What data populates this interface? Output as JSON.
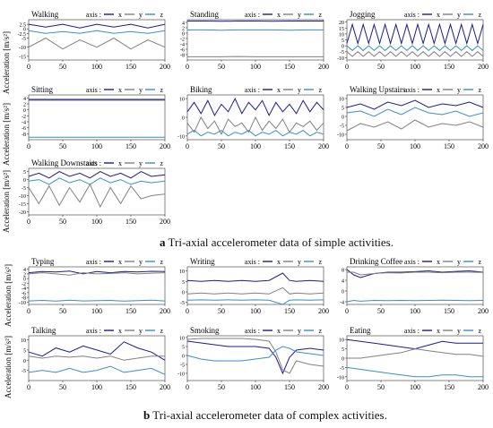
{
  "captions": {
    "simple": {
      "letter": "a",
      "text": "Tri-axial accelerometer data of simple activities."
    },
    "complex": {
      "letter": "b",
      "text": "Tri-axial accelerometer data of complex activities."
    }
  },
  "ylabel": "Acceleration [m/s²]",
  "legend": {
    "prefix": "axis :",
    "entries": [
      "x",
      "y",
      "z"
    ]
  },
  "colors": {
    "x": "#1c1c8c",
    "y": "#808080",
    "z": "#3a8fc4"
  },
  "chart_data": [
    {
      "type": "line",
      "title": "Walking",
      "xlim": [
        0,
        200
      ],
      "ylim": [
        -17,
        5
      ],
      "yticks": [
        -15,
        -10,
        -5,
        -2.5,
        0,
        2.5
      ],
      "xticks": [
        0,
        50,
        100,
        150,
        200
      ],
      "x": [
        0,
        25,
        50,
        75,
        100,
        125,
        150,
        175,
        200
      ],
      "series": [
        {
          "name": "x",
          "values": [
            2.5,
            1,
            2.5,
            0.5,
            2.5,
            1,
            2.5,
            0.5,
            2.5
          ]
        },
        {
          "name": "y",
          "values": [
            -10,
            -5,
            -11,
            -6,
            -10,
            -5,
            -11,
            -6,
            -10
          ]
        },
        {
          "name": "z",
          "values": [
            -1,
            -2.5,
            -1.5,
            -2.5,
            -1,
            -2.5,
            -1.5,
            -2.5,
            -1
          ]
        }
      ]
    },
    {
      "type": "line",
      "title": "Standing",
      "xlim": [
        0,
        200
      ],
      "ylim": [
        -10,
        5
      ],
      "yticks": [
        -8,
        -6,
        -4,
        -2,
        0,
        2,
        4
      ],
      "xticks": [
        0,
        50,
        100,
        150,
        200
      ],
      "x": [
        0,
        25,
        50,
        75,
        100,
        125,
        150,
        175,
        200
      ],
      "series": [
        {
          "name": "x",
          "values": [
            4.5,
            4.5,
            4.4,
            4.5,
            4.5,
            4.4,
            4.5,
            4.5,
            4.5
          ]
        },
        {
          "name": "y",
          "values": [
            -8.8,
            -8.8,
            -8.8,
            -8.7,
            -8.8,
            -8.8,
            -8.8,
            -8.8,
            -8.8
          ]
        },
        {
          "name": "z",
          "values": [
            1.2,
            1.2,
            1.1,
            1.2,
            1.2,
            1.2,
            1.1,
            1.2,
            1.2
          ]
        }
      ]
    },
    {
      "type": "line",
      "title": "Jogging",
      "xlim": [
        0,
        200
      ],
      "ylim": [
        -12,
        22
      ],
      "yticks": [
        -10,
        -5,
        0,
        5,
        10,
        15,
        20
      ],
      "xticks": [
        0,
        50,
        100,
        150,
        200
      ],
      "x": [
        0,
        8,
        16,
        24,
        32,
        40,
        48,
        56,
        64,
        72,
        80,
        88,
        96,
        104,
        112,
        120,
        128,
        136,
        144,
        152,
        160,
        168,
        176,
        184,
        192,
        200
      ],
      "series": [
        {
          "name": "x",
          "values": [
            2,
            18,
            2,
            18,
            2,
            18,
            2,
            18,
            2,
            18,
            2,
            18,
            2,
            18,
            2,
            18,
            2,
            18,
            2,
            18,
            2,
            18,
            2,
            18,
            2,
            18
          ]
        },
        {
          "name": "y",
          "values": [
            -5,
            -9,
            -5,
            -9,
            -5,
            -9,
            -5,
            -9,
            -5,
            -9,
            -5,
            -9,
            -5,
            -9,
            -5,
            -9,
            -5,
            -9,
            -5,
            -9,
            -5,
            -9,
            -5,
            -9,
            -5,
            -9
          ]
        },
        {
          "name": "z",
          "values": [
            0,
            -4,
            0,
            -4,
            0,
            -4,
            0,
            -4,
            0,
            -4,
            0,
            -4,
            0,
            -4,
            0,
            -4,
            0,
            -4,
            0,
            -4,
            0,
            -4,
            0,
            -4,
            0,
            -4
          ]
        }
      ]
    },
    {
      "type": "line",
      "title": "Sitting",
      "xlim": [
        0,
        200
      ],
      "ylim": [
        -10,
        5
      ],
      "yticks": [
        -8,
        -6,
        -4,
        -2,
        0,
        2,
        4
      ],
      "xticks": [
        0,
        50,
        100,
        150,
        200
      ],
      "x": [
        0,
        25,
        50,
        75,
        100,
        125,
        150,
        175,
        200
      ],
      "series": [
        {
          "name": "x",
          "values": [
            3.5,
            3.5,
            3.5,
            3.5,
            3.5,
            3.5,
            3.5,
            3.5,
            3.5
          ]
        },
        {
          "name": "y",
          "values": [
            3.2,
            3.2,
            3.2,
            3.2,
            3.2,
            3.2,
            3.2,
            3.2,
            3.2
          ]
        },
        {
          "name": "z",
          "values": [
            -9.2,
            -9.2,
            -9.2,
            -9.2,
            -9.2,
            -9.2,
            -9.2,
            -9.2,
            -9.2
          ]
        }
      ]
    },
    {
      "type": "line",
      "title": "Biking",
      "xlim": [
        0,
        200
      ],
      "ylim": [
        -12,
        12
      ],
      "yticks": [
        -10,
        0,
        10
      ],
      "xticks": [
        0,
        50,
        100,
        150,
        200
      ],
      "x": [
        0,
        10,
        20,
        30,
        40,
        50,
        60,
        70,
        80,
        90,
        100,
        110,
        120,
        130,
        140,
        150,
        160,
        170,
        180,
        190,
        200
      ],
      "series": [
        {
          "name": "x",
          "values": [
            3,
            8,
            2,
            9,
            1,
            7,
            3,
            10,
            2,
            8,
            4,
            9,
            1,
            8,
            3,
            7,
            2,
            9,
            3,
            8,
            4
          ]
        },
        {
          "name": "y",
          "values": [
            -3,
            -8,
            0,
            -6,
            -2,
            -9,
            -1,
            -5,
            -3,
            -8,
            0,
            -7,
            -2,
            -6,
            -1,
            -8,
            -3,
            -5,
            -2,
            -7,
            -3
          ]
        },
        {
          "name": "z",
          "values": [
            -9,
            -7,
            -10,
            -8,
            -9,
            -7,
            -10,
            -8,
            -9,
            -7,
            -10,
            -8,
            -9,
            -7,
            -10,
            -8,
            -9,
            -7,
            -10,
            -8,
            -9
          ]
        }
      ]
    },
    {
      "type": "line",
      "title": "Walking Upstairs",
      "xlim": [
        0,
        200
      ],
      "ylim": [
        -13,
        12
      ],
      "yticks": [
        -10,
        -5,
        0,
        5,
        10
      ],
      "xticks": [
        0,
        50,
        100,
        150,
        200
      ],
      "x": [
        0,
        20,
        40,
        60,
        80,
        100,
        120,
        140,
        160,
        180,
        200
      ],
      "series": [
        {
          "name": "x",
          "values": [
            5,
            7,
            4,
            8,
            6,
            9,
            5,
            7,
            6,
            8,
            5
          ]
        },
        {
          "name": "y",
          "values": [
            -8,
            -4,
            -6,
            -3,
            -7,
            -2,
            -6,
            -4,
            -5,
            -3,
            -6
          ]
        },
        {
          "name": "z",
          "values": [
            2,
            3,
            0,
            4,
            1,
            5,
            2,
            1,
            3,
            0,
            2
          ]
        }
      ]
    },
    {
      "type": "line",
      "title": "Walking Downstairs",
      "xlim": [
        0,
        200
      ],
      "ylim": [
        -22,
        7
      ],
      "yticks": [
        -20,
        -15,
        -10,
        -5,
        0,
        5
      ],
      "xticks": [
        0,
        50,
        100,
        150,
        200
      ],
      "x": [
        0,
        15,
        30,
        45,
        60,
        75,
        90,
        105,
        120,
        135,
        150,
        165,
        180,
        200
      ],
      "series": [
        {
          "name": "x",
          "values": [
            2,
            4,
            1,
            5,
            2,
            4,
            1,
            5,
            2,
            4,
            1,
            5,
            2,
            3
          ]
        },
        {
          "name": "y",
          "values": [
            -5,
            -15,
            -4,
            -16,
            -5,
            -14,
            -3,
            -17,
            -5,
            -15,
            -4,
            -12,
            -10,
            -9
          ]
        },
        {
          "name": "z",
          "values": [
            -1,
            0,
            -3,
            1,
            -2,
            0,
            -3,
            1,
            -2,
            0,
            -3,
            -1,
            -2,
            -1
          ]
        }
      ]
    },
    {
      "type": "line",
      "title": "Typing",
      "xlim": [
        0,
        200
      ],
      "ylim": [
        -11,
        5
      ],
      "yticks": [
        -10,
        -8,
        -6,
        -4,
        -2,
        0,
        2,
        4
      ],
      "xticks": [
        0,
        50,
        100,
        150,
        200
      ],
      "x": [
        0,
        20,
        40,
        60,
        80,
        100,
        120,
        140,
        160,
        180,
        200
      ],
      "series": [
        {
          "name": "x",
          "values": [
            2.5,
            3,
            2.8,
            3.2,
            2,
            3,
            2.5,
            3,
            2.8,
            3.1,
            3
          ]
        },
        {
          "name": "y",
          "values": [
            2,
            2.5,
            2,
            1.5,
            2.5,
            2,
            2.2,
            2.5,
            2,
            2.3,
            2.5
          ]
        },
        {
          "name": "z",
          "values": [
            -9.5,
            -9.3,
            -9.6,
            -9.2,
            -9.5,
            -9.4,
            -9.3,
            -9.6,
            -9.4,
            -9.2,
            -9.5
          ]
        }
      ]
    },
    {
      "type": "line",
      "title": "Writing",
      "xlim": [
        0,
        200
      ],
      "ylim": [
        -6,
        12
      ],
      "yticks": [
        -5,
        0,
        5,
        10
      ],
      "xticks": [
        0,
        50,
        100,
        150,
        200
      ],
      "x": [
        0,
        20,
        40,
        60,
        80,
        100,
        120,
        140,
        150,
        160,
        180,
        200
      ],
      "series": [
        {
          "name": "x",
          "values": [
            5.5,
            5,
            5.5,
            5,
            5.5,
            5,
            5.5,
            9,
            5.5,
            5,
            5.5,
            5
          ]
        },
        {
          "name": "y",
          "values": [
            -1,
            -0.5,
            -1,
            -0.5,
            -1,
            -0.5,
            -1,
            2,
            -1,
            -0.5,
            -1,
            -0.5
          ]
        },
        {
          "name": "z",
          "values": [
            -4,
            -3.8,
            -4,
            -3.8,
            -4,
            -3.8,
            -4,
            -6,
            -4,
            -3.8,
            -4,
            -3.8
          ]
        }
      ]
    },
    {
      "type": "line",
      "title": "Drinking Coffee",
      "xlim": [
        0,
        200
      ],
      "ylim": [
        -5,
        9
      ],
      "yticks": [
        -4,
        0,
        4,
        8
      ],
      "xticks": [
        0,
        50,
        100,
        150,
        200
      ],
      "x": [
        0,
        10,
        20,
        40,
        60,
        80,
        100,
        120,
        140,
        160,
        180,
        200
      ],
      "series": [
        {
          "name": "x",
          "values": [
            8,
            6,
            5,
            6.5,
            7,
            7,
            7.2,
            7.5,
            7,
            7.3,
            7.5,
            7
          ]
        },
        {
          "name": "y",
          "values": [
            7,
            7,
            6,
            6.5,
            6.8,
            6.7,
            7,
            7,
            6.8,
            7,
            7,
            6.9
          ]
        },
        {
          "name": "z",
          "values": [
            -4,
            -3.5,
            -3.8,
            -3.5,
            -3.6,
            -3.5,
            -3.6,
            -3.5,
            -3.4,
            -3.5,
            -3.6,
            -3.5
          ]
        }
      ]
    },
    {
      "type": "line",
      "title": "Talking",
      "xlim": [
        0,
        200
      ],
      "ylim": [
        -10,
        12
      ],
      "yticks": [
        -5,
        0,
        5,
        10
      ],
      "xticks": [
        0,
        50,
        100,
        150,
        200
      ],
      "x": [
        0,
        20,
        40,
        60,
        80,
        100,
        120,
        140,
        160,
        180,
        200
      ],
      "series": [
        {
          "name": "x",
          "values": [
            4,
            2,
            6,
            4,
            7,
            5,
            3,
            9,
            6,
            4,
            0
          ]
        },
        {
          "name": "y",
          "values": [
            2,
            1,
            2,
            1.5,
            2,
            1,
            2,
            0,
            1,
            2,
            2
          ]
        },
        {
          "name": "z",
          "values": [
            -6,
            -5,
            -6,
            -4,
            -6,
            -5,
            -3,
            -6,
            -5,
            -4,
            -7
          ]
        }
      ]
    },
    {
      "type": "line",
      "title": "Smoking",
      "xlim": [
        0,
        200
      ],
      "ylim": [
        -14,
        11
      ],
      "yticks": [
        -10,
        -5,
        0,
        5,
        10
      ],
      "xticks": [
        0,
        50,
        100,
        150,
        200
      ],
      "x": [
        0,
        20,
        40,
        60,
        80,
        100,
        120,
        130,
        140,
        150,
        160,
        180,
        200
      ],
      "series": [
        {
          "name": "x",
          "values": [
            8,
            7,
            6,
            5,
            5,
            5,
            4,
            -1,
            -10,
            -1,
            3,
            4,
            3
          ]
        },
        {
          "name": "y",
          "values": [
            9,
            9.5,
            9.5,
            9.5,
            9.5,
            9,
            8,
            2,
            -8,
            -10,
            -3,
            -5,
            -6
          ]
        },
        {
          "name": "z",
          "values": [
            0,
            -2,
            -3,
            -3,
            -3,
            -2,
            -1,
            3,
            5,
            4,
            2,
            1,
            0
          ]
        }
      ]
    },
    {
      "type": "line",
      "title": "Eating",
      "xlim": [
        0,
        200
      ],
      "ylim": [
        -12,
        12
      ],
      "yticks": [
        -10,
        -5,
        0,
        5,
        10
      ],
      "xticks": [
        0,
        50,
        100,
        150,
        200
      ],
      "x": [
        0,
        20,
        40,
        60,
        80,
        100,
        120,
        140,
        160,
        180,
        200
      ],
      "series": [
        {
          "name": "x",
          "values": [
            10,
            9,
            8,
            7,
            6,
            5,
            7,
            9,
            8,
            8,
            8
          ]
        },
        {
          "name": "y",
          "values": [
            0,
            0,
            1,
            2,
            3,
            5,
            4,
            3,
            2,
            2,
            1
          ]
        },
        {
          "name": "z",
          "values": [
            -5,
            -6,
            -7,
            -8,
            -9,
            -10,
            -10,
            -9,
            -9,
            -10,
            -10
          ]
        }
      ]
    }
  ]
}
